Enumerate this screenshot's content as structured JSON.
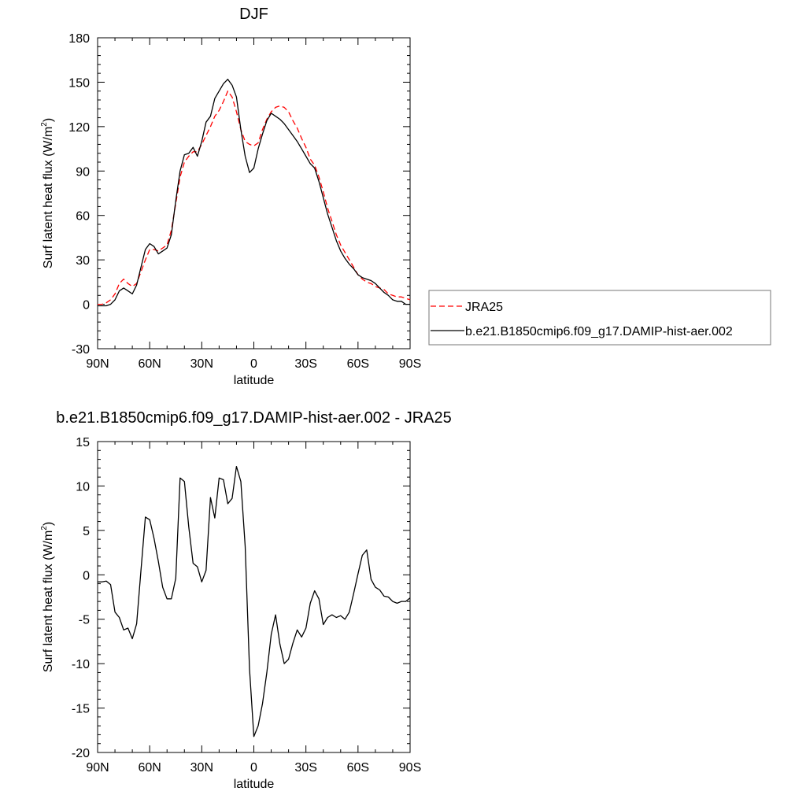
{
  "chart_data": [
    {
      "type": "line",
      "title": "DJF",
      "xlabel": "latitude",
      "ylabel": "Surf latent heat flux (W/m",
      "ylabel_superscript": "2",
      "ylabel_suffix": ")",
      "xlim": [
        90,
        -90
      ],
      "ylim": [
        -30,
        180
      ],
      "xticks": [
        90,
        60,
        30,
        0,
        -30,
        -60,
        -90
      ],
      "xtick_labels": [
        "90N",
        "60N",
        "30N",
        "0",
        "30S",
        "60S",
        "90S"
      ],
      "yticks": [
        -30,
        0,
        30,
        60,
        90,
        120,
        150,
        180
      ],
      "ytick_labels": [
        "-30",
        "0",
        "30",
        "60",
        "90",
        "120",
        "150",
        "180"
      ],
      "legend_position": "right",
      "series": [
        {
          "name": "JRA25",
          "color": "#ff0000",
          "dash": "dashed",
          "x": [
            90,
            87.5,
            85,
            82.5,
            80,
            77.5,
            75,
            72.5,
            70,
            67.5,
            65,
            62.5,
            60,
            57.5,
            55,
            52.5,
            50,
            47.5,
            45,
            42.5,
            40,
            37.5,
            35,
            32.5,
            30,
            27.5,
            25,
            22.5,
            20,
            17.5,
            15,
            12.5,
            10,
            7.5,
            5,
            2.5,
            0,
            -2.5,
            -5,
            -7.5,
            -10,
            -12.5,
            -15,
            -17.5,
            -20,
            -22.5,
            -25,
            -27.5,
            -30,
            -32.5,
            -35,
            -37.5,
            -40,
            -42.5,
            -45,
            -47.5,
            -50,
            -52.5,
            -55,
            -57.5,
            -60,
            -62.5,
            -65,
            -67.5,
            -70,
            -72.5,
            -75,
            -77.5,
            -80,
            -82.5,
            -85,
            -87.5,
            -90
          ],
          "y": [
            0,
            0,
            1,
            3,
            7,
            14,
            17,
            14,
            12,
            14,
            22,
            30,
            37,
            37,
            36,
            38,
            40,
            50,
            68,
            86,
            96,
            100,
            103,
            103,
            108,
            114,
            120,
            127,
            131,
            137,
            144,
            140,
            130,
            118,
            110,
            108,
            107,
            109,
            118,
            125,
            130,
            133,
            134,
            133,
            130,
            124,
            119,
            112,
            106,
            98,
            94,
            86,
            76,
            65,
            56,
            47,
            40,
            35,
            30,
            25,
            20,
            17,
            15,
            14,
            12,
            11,
            10,
            7,
            6,
            5,
            5,
            4,
            3
          ]
        },
        {
          "name": "b.e21.B1850cmip6.f09_g17.DAMIP-hist-aer.002",
          "color": "#000000",
          "dash": "solid",
          "x": [
            90,
            87.5,
            85,
            82.5,
            80,
            77.5,
            75,
            72.5,
            70,
            67.5,
            65,
            62.5,
            60,
            57.5,
            55,
            52.5,
            50,
            47.5,
            45,
            42.5,
            40,
            37.5,
            35,
            32.5,
            30,
            27.5,
            25,
            22.5,
            20,
            17.5,
            15,
            12.5,
            10,
            7.5,
            5,
            2.5,
            0,
            -2.5,
            -5,
            -7.5,
            -10,
            -12.5,
            -15,
            -17.5,
            -20,
            -22.5,
            -25,
            -27.5,
            -30,
            -32.5,
            -35,
            -37.5,
            -40,
            -42.5,
            -45,
            -47.5,
            -50,
            -52.5,
            -55,
            -57.5,
            -60,
            -62.5,
            -65,
            -67.5,
            -70,
            -72.5,
            -75,
            -77.5,
            -80,
            -82.5,
            -85,
            -87.5,
            -90
          ],
          "y": [
            -1,
            -1,
            -1,
            0,
            3,
            9,
            11,
            9,
            7,
            13,
            25,
            37,
            41,
            39,
            34,
            36,
            38,
            47,
            70,
            90,
            101,
            102,
            106,
            100,
            110,
            123,
            127,
            139,
            144,
            149,
            152,
            148,
            140,
            118,
            100,
            89,
            92,
            105,
            115,
            124,
            129,
            127,
            125,
            122,
            118,
            114,
            110,
            105,
            100,
            95,
            92,
            83,
            72,
            61,
            52,
            43,
            36,
            31,
            27,
            24,
            20,
            18,
            17,
            16,
            14,
            11,
            8,
            6,
            3,
            2,
            2,
            0,
            0
          ]
        }
      ]
    },
    {
      "type": "line",
      "title": "b.e21.B1850cmip6.f09_g17.DAMIP-hist-aer.002 - JRA25",
      "xlabel": "latitude",
      "ylabel": "Surf latent heat flux (W/m",
      "ylabel_superscript": "2",
      "ylabel_suffix": ")",
      "xlim": [
        90,
        -90
      ],
      "ylim": [
        -20,
        15
      ],
      "xticks": [
        90,
        60,
        30,
        0,
        -30,
        -60,
        -90
      ],
      "xtick_labels": [
        "90N",
        "60N",
        "30N",
        "0",
        "30S",
        "60S",
        "90S"
      ],
      "yticks": [
        -20,
        -15,
        -10,
        -5,
        0,
        5,
        10,
        15
      ],
      "ytick_labels": [
        "-20",
        "-15",
        "-10",
        "-5",
        "0",
        "5",
        "10",
        "15"
      ],
      "series": [
        {
          "color": "#000000",
          "dash": "solid",
          "x": [
            90,
            87.5,
            85,
            82.5,
            80,
            77.5,
            75,
            72.5,
            70,
            67.5,
            65,
            62.5,
            60,
            57.5,
            55,
            52.5,
            50,
            47.5,
            45,
            42.5,
            40,
            37.5,
            35,
            32.5,
            30,
            27.5,
            25,
            22.5,
            20,
            17.5,
            15,
            12.5,
            10,
            7.5,
            5,
            2.5,
            0,
            -2.5,
            -5,
            -7.5,
            -10,
            -12.5,
            -15,
            -17.5,
            -20,
            -22.5,
            -25,
            -27.5,
            -30,
            -32.5,
            -35,
            -37.5,
            -40,
            -42.5,
            -45,
            -47.5,
            -50,
            -52.5,
            -55,
            -57.5,
            -60,
            -62.5,
            -65,
            -67.5,
            -70,
            -72.5,
            -75,
            -77.5,
            -80,
            -82.5,
            -85,
            -87.5,
            -90
          ],
          "y": [
            -0.8,
            -0.8,
            -0.7,
            -1.1,
            -4.2,
            -4.8,
            -6.2,
            -6.0,
            -7.2,
            -5.5,
            0.5,
            6.5,
            6.2,
            4.1,
            1.5,
            -1.4,
            -2.7,
            -2.7,
            -0.4,
            10.9,
            10.5,
            5.4,
            1.3,
            0.9,
            -0.8,
            0.5,
            8.7,
            6.4,
            10.9,
            10.7,
            8.0,
            8.6,
            12.2,
            10.5,
            3.2,
            -10.6,
            -18.2,
            -17.0,
            -14.5,
            -11.0,
            -6.7,
            -4.5,
            -7.8,
            -10.0,
            -9.5,
            -7.7,
            -6.2,
            -7.0,
            -6.0,
            -3.2,
            -1.8,
            -2.7,
            -5.6,
            -4.8,
            -4.5,
            -4.8,
            -4.6,
            -5.0,
            -4.2,
            -2.1,
            0.1,
            2.2,
            2.8,
            -0.5,
            -1.4,
            -1.7,
            -2.4,
            -2.5,
            -3.0,
            -3.2,
            -3.0,
            -3.0,
            -2.6
          ]
        }
      ]
    }
  ]
}
